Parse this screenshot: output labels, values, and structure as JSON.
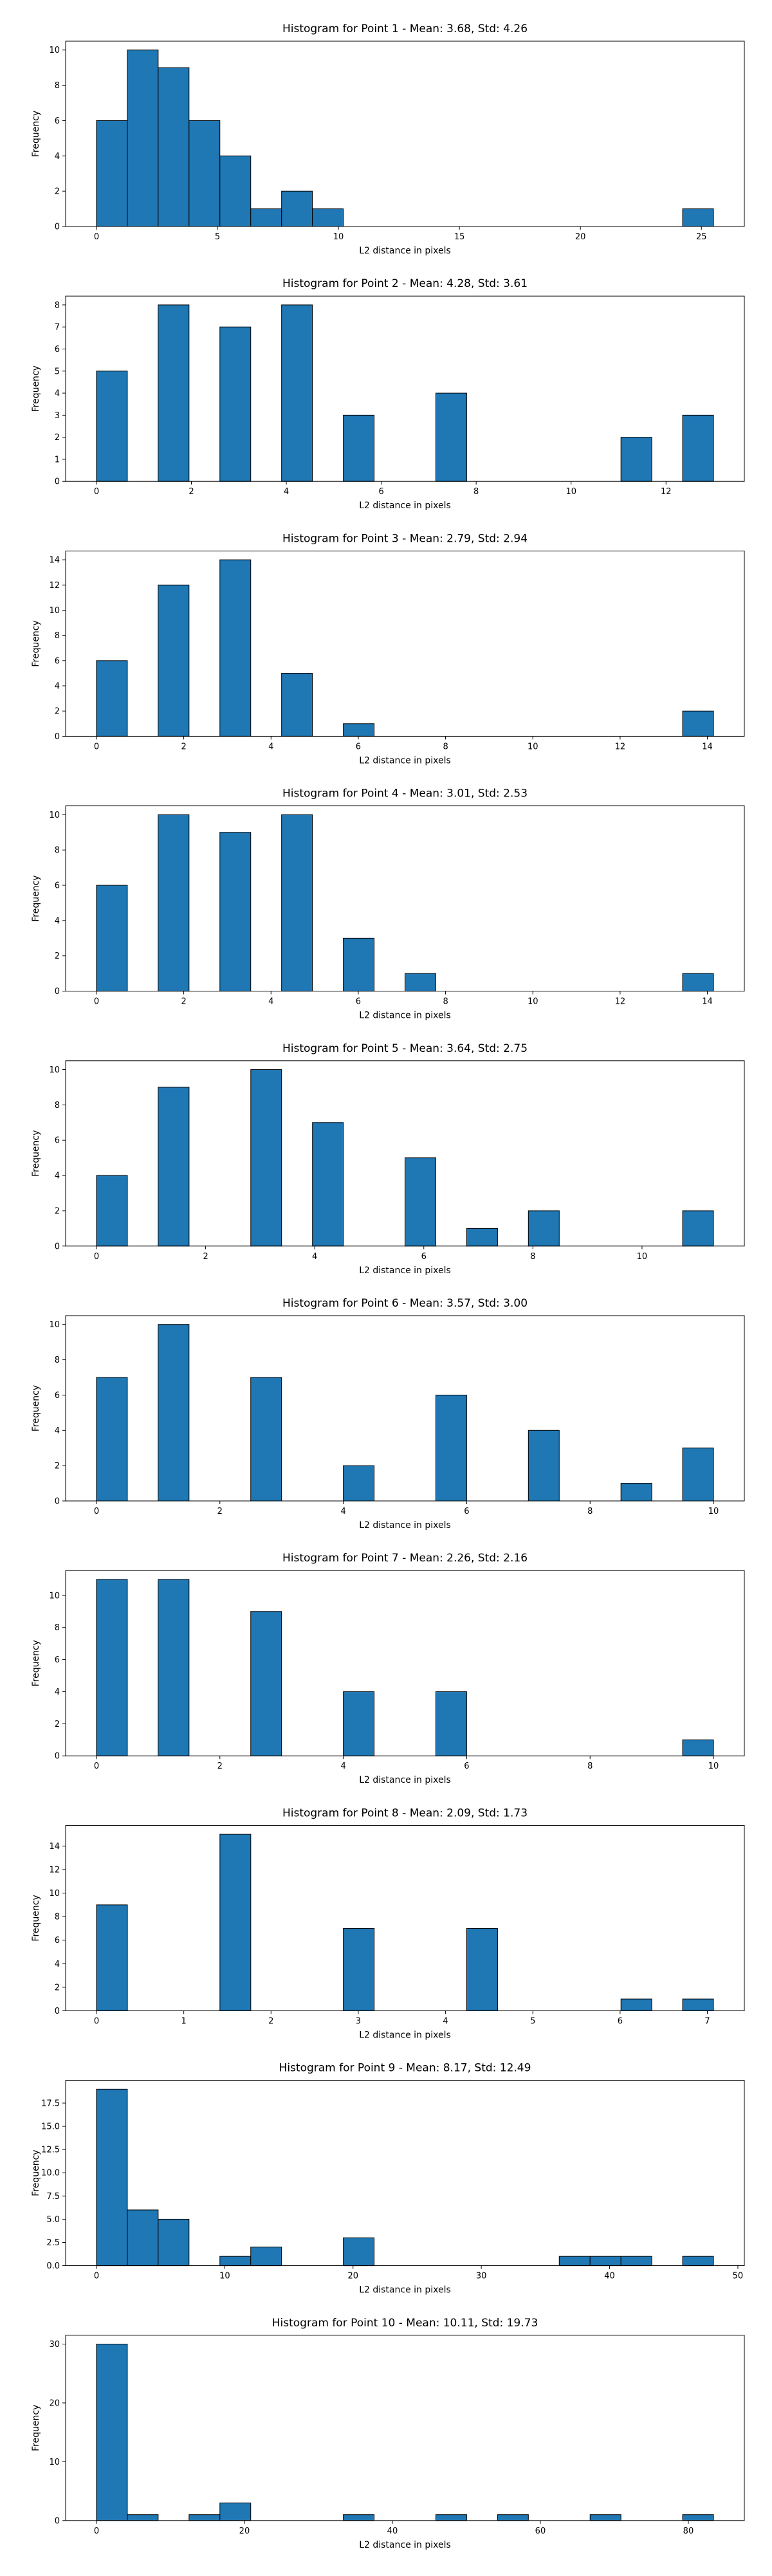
{
  "chart_data": [
    {
      "type": "histogram",
      "title": "Histogram for Point 1 - Mean: 3.68, Std: 4.26",
      "xlabel": "L2 distance in pixels",
      "ylabel": "Frequency",
      "color": "#1f77b4",
      "edgecolor": "#000000",
      "bins": [
        0,
        1.275,
        2.55,
        3.825,
        5.1,
        6.375,
        7.65,
        8.925,
        10.2,
        11.475,
        12.75,
        14.025,
        15.3,
        16.575,
        17.85,
        19.125,
        20.4,
        21.675,
        22.95,
        24.225,
        25.5
      ],
      "values": [
        6,
        10,
        9,
        6,
        4,
        1,
        2,
        1,
        0,
        0,
        0,
        0,
        0,
        0,
        0,
        0,
        0,
        0,
        0,
        1
      ],
      "xlim": [
        -1.275,
        26.775
      ],
      "xticks": [
        0,
        5,
        10,
        15,
        20,
        25
      ],
      "ylim": [
        0,
        10.5
      ],
      "yticks": [
        0,
        2,
        4,
        6,
        8,
        10
      ]
    },
    {
      "type": "histogram",
      "title": "Histogram for Point 2 - Mean: 4.28, Std: 3.61",
      "xlabel": "L2 distance in pixels",
      "ylabel": "Frequency",
      "color": "#1f77b4",
      "edgecolor": "#000000",
      "bins": [
        0,
        0.65,
        1.3,
        1.95,
        2.6,
        3.25,
        3.9,
        4.55,
        5.2,
        5.85,
        6.5,
        7.15,
        7.8,
        8.45,
        9.1,
        9.75,
        10.4,
        11.05,
        11.7,
        12.35,
        13
      ],
      "values": [
        5,
        0,
        8,
        0,
        7,
        0,
        8,
        0,
        3,
        0,
        0,
        4,
        0,
        0,
        0,
        0,
        0,
        2,
        0,
        3
      ],
      "xlim": [
        -0.65,
        13.65
      ],
      "xticks": [
        0,
        2,
        4,
        6,
        8,
        10,
        12
      ],
      "ylim": [
        0,
        8.4
      ],
      "yticks": [
        0,
        1,
        2,
        3,
        4,
        5,
        6,
        7,
        8
      ]
    },
    {
      "type": "histogram",
      "title": "Histogram for Point 3 - Mean: 2.79, Std: 2.94",
      "xlabel": "L2 distance in pixels",
      "ylabel": "Frequency",
      "color": "#1f77b4",
      "edgecolor": "#000000",
      "bins": [
        0,
        0.707,
        1.414,
        2.121,
        2.828,
        3.535,
        4.242,
        4.949,
        5.656,
        6.363,
        7.07,
        7.777,
        8.484,
        9.191,
        9.898,
        10.605,
        11.312,
        12.019,
        12.726,
        13.433,
        14.14
      ],
      "values": [
        6,
        0,
        12,
        0,
        14,
        0,
        5,
        0,
        1,
        0,
        0,
        0,
        0,
        0,
        0,
        0,
        0,
        0,
        0,
        2
      ],
      "xlim": [
        -0.707,
        14.847
      ],
      "xticks": [
        0,
        2,
        4,
        6,
        8,
        10,
        12,
        14
      ],
      "ylim": [
        0,
        14.7
      ],
      "yticks": [
        0,
        2,
        4,
        6,
        8,
        10,
        12,
        14
      ]
    },
    {
      "type": "histogram",
      "title": "Histogram for Point 4 - Mean: 3.01, Std: 2.53",
      "xlabel": "L2 distance in pixels",
      "ylabel": "Frequency",
      "color": "#1f77b4",
      "edgecolor": "#000000",
      "bins": [
        0,
        0.707,
        1.414,
        2.121,
        2.828,
        3.535,
        4.242,
        4.949,
        5.656,
        6.363,
        7.07,
        7.777,
        8.484,
        9.191,
        9.898,
        10.605,
        11.312,
        12.019,
        12.726,
        13.433,
        14.14
      ],
      "values": [
        6,
        0,
        10,
        0,
        9,
        0,
        10,
        0,
        3,
        0,
        1,
        0,
        0,
        0,
        0,
        0,
        0,
        0,
        0,
        1
      ],
      "xlim": [
        -0.707,
        14.847
      ],
      "xticks": [
        0,
        2,
        4,
        6,
        8,
        10,
        12,
        14
      ],
      "ylim": [
        0,
        10.5
      ],
      "yticks": [
        0,
        2,
        4,
        6,
        8,
        10
      ]
    },
    {
      "type": "histogram",
      "title": "Histogram for Point 5 - Mean: 3.64, Std: 2.75",
      "xlabel": "L2 distance in pixels",
      "ylabel": "Frequency",
      "color": "#1f77b4",
      "edgecolor": "#000000",
      "bins": [
        0,
        0.566,
        1.131,
        1.697,
        2.262,
        2.828,
        3.393,
        3.959,
        4.524,
        5.09,
        5.655,
        6.221,
        6.786,
        7.352,
        7.917,
        8.483,
        9.048,
        9.614,
        10.179,
        10.745,
        11.31
      ],
      "values": [
        4,
        0,
        9,
        0,
        0,
        10,
        0,
        7,
        0,
        0,
        5,
        0,
        1,
        0,
        2,
        0,
        0,
        0,
        0,
        2
      ],
      "xlim": [
        -0.566,
        11.876
      ],
      "xticks": [
        0,
        2,
        4,
        6,
        8,
        10
      ],
      "ylim": [
        0,
        10.5
      ],
      "yticks": [
        0,
        2,
        4,
        6,
        8,
        10
      ]
    },
    {
      "type": "histogram",
      "title": "Histogram for Point 6 - Mean: 3.57, Std: 3.00",
      "xlabel": "L2 distance in pixels",
      "ylabel": "Frequency",
      "color": "#1f77b4",
      "edgecolor": "#000000",
      "bins": [
        0,
        0.5,
        1,
        1.5,
        2,
        2.5,
        3,
        3.5,
        4,
        4.5,
        5,
        5.5,
        6,
        6.5,
        7,
        7.5,
        8,
        8.5,
        9,
        9.5,
        10
      ],
      "values": [
        7,
        0,
        10,
        0,
        0,
        7,
        0,
        0,
        2,
        0,
        0,
        6,
        0,
        0,
        4,
        0,
        0,
        1,
        0,
        3
      ],
      "xlim": [
        -0.5,
        10.5
      ],
      "xticks": [
        0,
        2,
        4,
        6,
        8,
        10
      ],
      "ylim": [
        0,
        10.5
      ],
      "yticks": [
        0,
        2,
        4,
        6,
        8,
        10
      ]
    },
    {
      "type": "histogram",
      "title": "Histogram for Point 7 - Mean: 2.26, Std: 2.16",
      "xlabel": "L2 distance in pixels",
      "ylabel": "Frequency",
      "color": "#1f77b4",
      "edgecolor": "#000000",
      "bins": [
        0,
        0.5,
        1,
        1.5,
        2,
        2.5,
        3,
        3.5,
        4,
        4.5,
        5,
        5.5,
        6,
        6.5,
        7,
        7.5,
        8,
        8.5,
        9,
        9.5,
        10
      ],
      "values": [
        11,
        0,
        11,
        0,
        0,
        9,
        0,
        0,
        4,
        0,
        0,
        4,
        0,
        0,
        0,
        0,
        0,
        0,
        0,
        1
      ],
      "xlim": [
        -0.5,
        10.5
      ],
      "xticks": [
        0,
        2,
        4,
        6,
        8,
        10
      ],
      "ylim": [
        0,
        11.55
      ],
      "yticks": [
        0,
        2,
        4,
        6,
        8,
        10
      ]
    },
    {
      "type": "histogram",
      "title": "Histogram for Point 8 - Mean: 2.09, Std: 1.73",
      "xlabel": "L2 distance in pixels",
      "ylabel": "Frequency",
      "color": "#1f77b4",
      "edgecolor": "#000000",
      "bins": [
        0,
        0.354,
        0.707,
        1.061,
        1.414,
        1.768,
        2.121,
        2.475,
        2.828,
        3.182,
        3.535,
        3.889,
        4.242,
        4.596,
        4.949,
        5.303,
        5.656,
        6.01,
        6.363,
        6.717,
        7.07
      ],
      "values": [
        9,
        0,
        0,
        0,
        15,
        0,
        0,
        0,
        7,
        0,
        0,
        0,
        7,
        0,
        0,
        0,
        0,
        1,
        0,
        1
      ],
      "xlim": [
        -0.354,
        7.424
      ],
      "xticks": [
        0,
        1,
        2,
        3,
        4,
        5,
        6,
        7
      ],
      "ylim": [
        0,
        15.75
      ],
      "yticks": [
        0,
        2,
        4,
        6,
        8,
        10,
        12,
        14
      ]
    },
    {
      "type": "histogram",
      "title": "Histogram for Point 9 - Mean: 8.17, Std: 12.49",
      "xlabel": "L2 distance in pixels",
      "ylabel": "Frequency",
      "color": "#1f77b4",
      "edgecolor": "#000000",
      "bins": [
        0,
        2.405,
        4.81,
        7.215,
        9.62,
        12.025,
        14.43,
        16.835,
        19.24,
        21.645,
        24.05,
        26.455,
        28.86,
        31.265,
        33.67,
        36.075,
        38.48,
        40.885,
        43.29,
        45.695,
        48.1
      ],
      "values": [
        19,
        6,
        5,
        0,
        1,
        2,
        0,
        0,
        3,
        0,
        0,
        0,
        0,
        0,
        0,
        1,
        1,
        1,
        0,
        1
      ],
      "xlim": [
        -2.405,
        50.505
      ],
      "xticks": [
        0,
        10,
        20,
        30,
        40,
        50
      ],
      "ylim": [
        0,
        19.95
      ],
      "yticks": [
        {
          "value": 0,
          "label": "0.0"
        },
        {
          "value": 2.5,
          "label": "2.5"
        },
        {
          "value": 5,
          "label": "5.0"
        },
        {
          "value": 7.5,
          "label": "7.5"
        },
        {
          "value": 10,
          "label": "10.0"
        },
        {
          "value": 12.5,
          "label": "12.5"
        },
        {
          "value": 15,
          "label": "15.0"
        },
        {
          "value": 17.5,
          "label": "17.5"
        }
      ]
    },
    {
      "type": "histogram",
      "title": "Histogram for Point 10 - Mean: 10.11, Std: 19.73",
      "xlabel": "L2 distance in pixels",
      "ylabel": "Frequency",
      "color": "#1f77b4",
      "edgecolor": "#000000",
      "bins": [
        0,
        4.17,
        8.34,
        12.51,
        16.68,
        20.85,
        25.02,
        29.19,
        33.36,
        37.53,
        41.7,
        45.87,
        50.04,
        54.21,
        58.38,
        62.55,
        66.72,
        70.89,
        75.06,
        79.23,
        83.4
      ],
      "values": [
        30,
        1,
        0,
        1,
        3,
        0,
        0,
        0,
        1,
        0,
        0,
        1,
        0,
        1,
        0,
        0,
        1,
        0,
        0,
        1
      ],
      "xlim": [
        -4.17,
        87.57
      ],
      "xticks": [
        0,
        20,
        40,
        60,
        80
      ],
      "ylim": [
        0,
        31.5
      ],
      "yticks": [
        0,
        10,
        20,
        30
      ]
    }
  ]
}
